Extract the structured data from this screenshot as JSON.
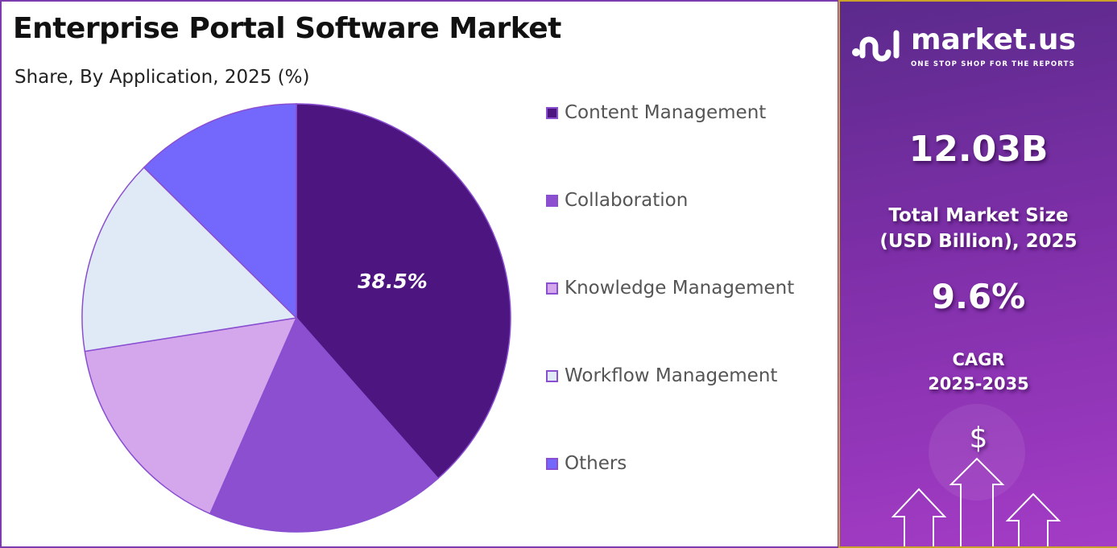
{
  "chart_data": {
    "type": "pie",
    "title": "Enterprise Portal Software Market",
    "subtitle": "Share, By Application, 2025 (%)",
    "categories": [
      "Content Management",
      "Collaboration",
      "Knowledge Management",
      "Workflow Management",
      "Others"
    ],
    "values": [
      38.5,
      18.1,
      15.9,
      14.9,
      12.6
    ],
    "colors": [
      "#4d1580",
      "#8b4fcf",
      "#d4a6ec",
      "#e0eaf6",
      "#7467fb"
    ],
    "data_labels": [
      "38.5%",
      "",
      "",
      "",
      ""
    ],
    "legend": "right"
  },
  "sidebar": {
    "logo_name": "market.us",
    "logo_tagline": "ONE STOP SHOP FOR THE REPORTS",
    "market_size": "12.03B",
    "market_size_label_1": "Total Market Size",
    "market_size_label_2": "(USD Billion), 2025",
    "cagr": "9.6%",
    "cagr_label_1": "CAGR",
    "cagr_label_2": "2025-2035",
    "dollar_icon": "$"
  }
}
